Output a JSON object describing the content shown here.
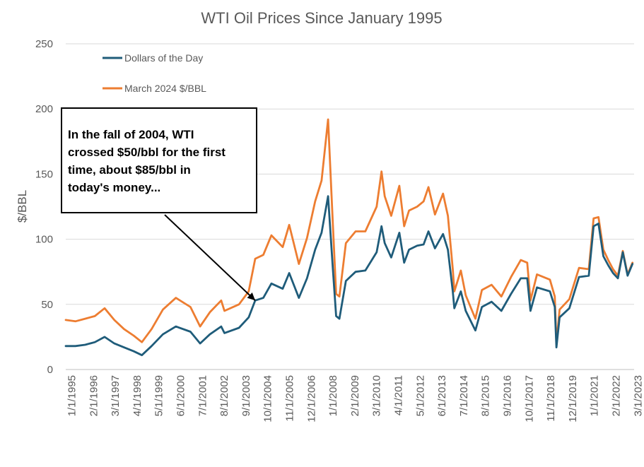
{
  "chart_data": {
    "type": "line",
    "title": "WTI Oil Prices Since January 1995",
    "ylabel": "$/BBL",
    "xlabel": "",
    "ylim": [
      0,
      250
    ],
    "yticks": [
      0,
      50,
      100,
      150,
      200,
      250
    ],
    "grid": "horizontal",
    "legend_position": "top-left",
    "x_tick_labels": [
      "1/1/1995",
      "2/1/1996",
      "3/1/1997",
      "4/1/1998",
      "5/1/1999",
      "6/1/2000",
      "7/1/2001",
      "8/1/2002",
      "9/1/2003",
      "10/1/2004",
      "11/1/2005",
      "12/1/2006",
      "1/1/2008",
      "2/1/2009",
      "3/1/2010",
      "4/1/2011",
      "5/1/2012",
      "6/1/2013",
      "7/1/2014",
      "8/1/2015",
      "9/1/2016",
      "10/1/2017",
      "11/1/2018",
      "12/1/2019",
      "1/1/2021",
      "2/1/2022",
      "3/1/2023"
    ],
    "x_dates": [
      "1995-01",
      "1995-07",
      "1996-01",
      "1996-07",
      "1997-01",
      "1997-07",
      "1998-01",
      "1998-07",
      "1998-12",
      "1999-06",
      "2000-01",
      "2000-09",
      "2001-06",
      "2001-12",
      "2002-06",
      "2003-01",
      "2003-03",
      "2003-12",
      "2004-06",
      "2004-10",
      "2005-03",
      "2005-08",
      "2006-03",
      "2006-07",
      "2007-01",
      "2007-06",
      "2007-11",
      "2008-03",
      "2008-07",
      "2008-10",
      "2008-12",
      "2009-02",
      "2009-06",
      "2009-12",
      "2010-06",
      "2011-01",
      "2011-04",
      "2011-06",
      "2011-10",
      "2012-03",
      "2012-06",
      "2012-09",
      "2013-02",
      "2013-06",
      "2013-09",
      "2014-01",
      "2014-06",
      "2014-09",
      "2014-12",
      "2015-01",
      "2015-05",
      "2015-08",
      "2015-12",
      "2016-02",
      "2016-06",
      "2016-12",
      "2017-06",
      "2017-12",
      "2018-06",
      "2018-10",
      "2018-12",
      "2019-04",
      "2019-12",
      "2020-03",
      "2020-04",
      "2020-06",
      "2020-12",
      "2021-06",
      "2021-12",
      "2022-03",
      "2022-06",
      "2022-09",
      "2022-12",
      "2023-03",
      "2023-06",
      "2023-09",
      "2023-12",
      "2024-03"
    ],
    "series": [
      {
        "name": "Dollars of the Day",
        "color": "#1F5C7A",
        "values": [
          18,
          18,
          19,
          21,
          25,
          20,
          17,
          14,
          11,
          18,
          27,
          33,
          29,
          20,
          27,
          33,
          28,
          32,
          40,
          53,
          55,
          66,
          62,
          74,
          55,
          70,
          92,
          105,
          133,
          77,
          41,
          39,
          68,
          75,
          76,
          90,
          110,
          97,
          86,
          105,
          82,
          92,
          95,
          96,
          106,
          93,
          104,
          92,
          60,
          47,
          60,
          45,
          35,
          30,
          48,
          52,
          45,
          58,
          70,
          70,
          45,
          63,
          60,
          48,
          17,
          40,
          47,
          71,
          72,
          110,
          112,
          87,
          80,
          74,
          70,
          90,
          72,
          81
        ]
      },
      {
        "name": "March 2024 $/BBL",
        "color": "#ED7D31",
        "values": [
          38,
          37,
          39,
          41,
          47,
          38,
          31,
          26,
          21,
          31,
          46,
          55,
          48,
          33,
          44,
          53,
          45,
          50,
          60,
          85,
          88,
          103,
          94,
          111,
          81,
          101,
          129,
          145,
          192,
          111,
          58,
          56,
          97,
          106,
          106,
          125,
          152,
          133,
          118,
          141,
          110,
          122,
          125,
          129,
          140,
          119,
          135,
          118,
          77,
          60,
          76,
          57,
          45,
          39,
          61,
          65,
          56,
          71,
          84,
          82,
          53,
          73,
          69,
          56,
          20,
          46,
          54,
          78,
          77,
          116,
          117,
          92,
          84,
          77,
          72,
          91,
          73,
          82
        ]
      }
    ],
    "annotations": [
      {
        "lines": [
          "In the fall of 2004, WTI",
          "crossed $50/bbl for the first",
          "time, about $85/bbl in",
          "today's money..."
        ],
        "arrow_to": {
          "x": "2004-10",
          "y": 53
        }
      }
    ]
  }
}
